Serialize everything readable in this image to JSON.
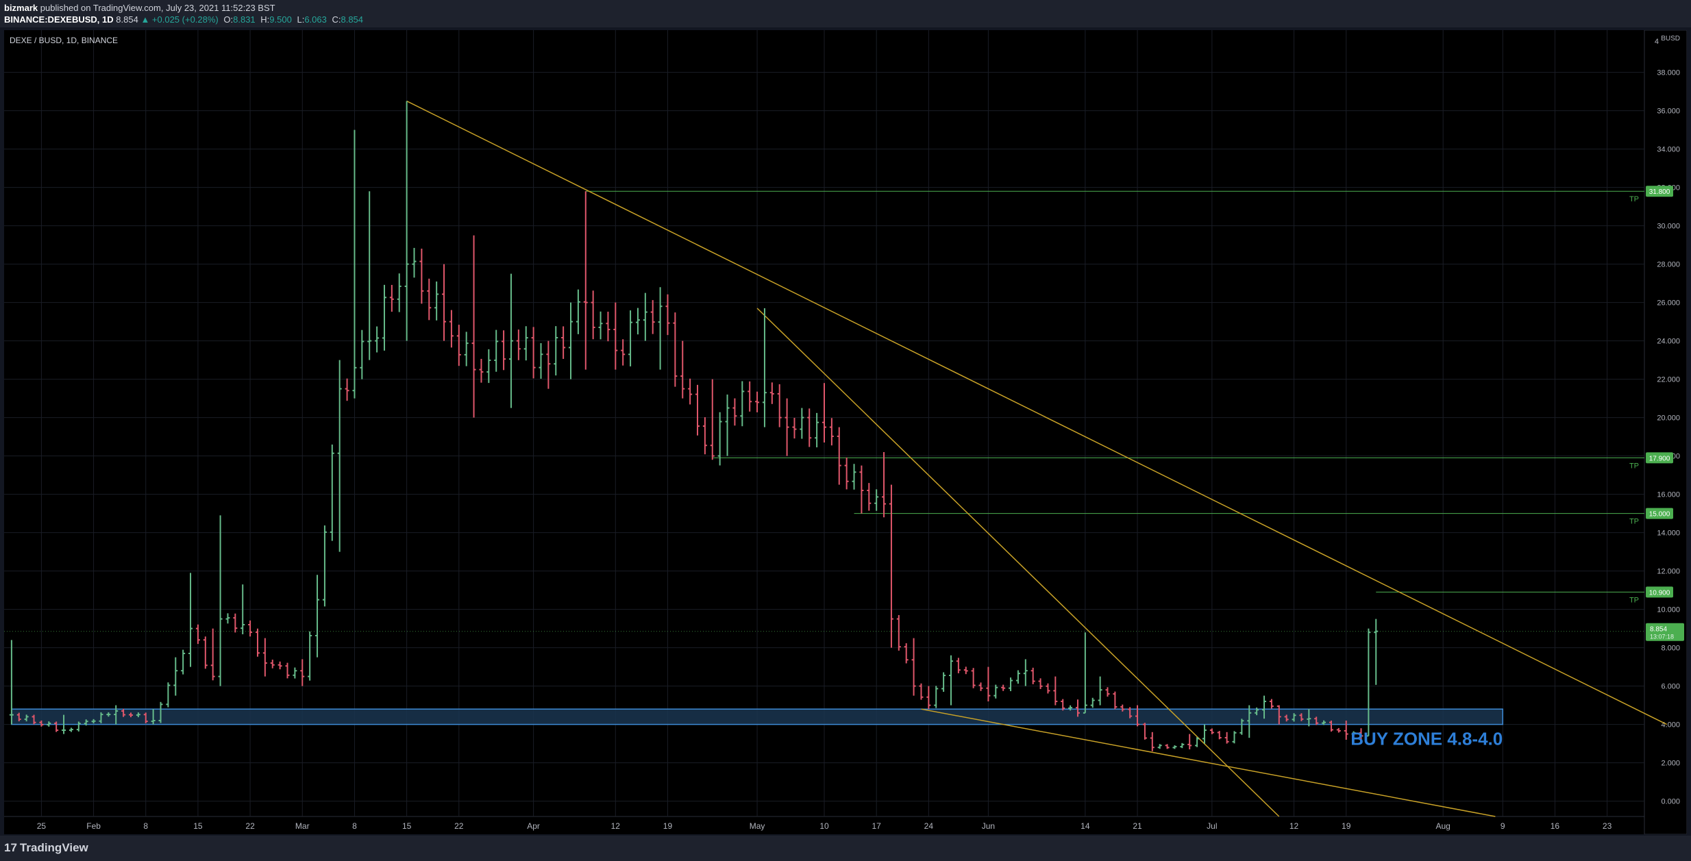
{
  "header": {
    "author": "bizmark",
    "published": "published on TradingView.com, July 23, 2021 11:52:23 BST",
    "symbol": "BINANCE:DEXEBUSD, 1D",
    "price": "8.854",
    "change": "▲ +0.025 (+0.28%)",
    "o_label": "O:",
    "o_value": "8.831",
    "h_label": "H:",
    "h_value": "9.500",
    "l_label": "L:",
    "l_value": "6.063",
    "c_label": "C:",
    "c_value": "8.854"
  },
  "footer": {
    "brand": "TradingView",
    "brand_mark": "17"
  },
  "colors": {
    "background": "#000000",
    "up": "#66bb8a",
    "down": "#e0576b",
    "grid": "#1a1d26",
    "trendline": "#c9a227",
    "target_line": "#4caf50",
    "buy_zone_fill": "#1a3550",
    "buy_zone_border": "#3d8bd6",
    "buy_zone_text": "#2e7fd8"
  },
  "chart_data": {
    "type": "ohlc",
    "title": "DEXE / BUSD, 1D, BINANCE",
    "currency_label": "BUSD",
    "ylim": [
      -0.8,
      40.2
    ],
    "y_ticks": [
      0,
      2,
      4,
      6,
      8,
      10,
      12,
      14,
      16,
      18,
      20,
      22,
      24,
      26,
      28,
      30,
      32,
      34,
      36,
      38
    ],
    "y_tick_labels": [
      "0.000",
      "2.000",
      "4.000",
      "6.000",
      "8.000",
      "10.000",
      "12.000",
      "14.000",
      "16.000",
      "18.000",
      "20.000",
      "22.000",
      "24.000",
      "26.000",
      "28.000",
      "30.000",
      "32.000",
      "34.000",
      "36.000",
      "38.000"
    ],
    "y_top_label": "4",
    "xlim": [
      "2021-01-20",
      "2021-08-28"
    ],
    "x_ticks": [
      {
        "date": "2021-01-25",
        "label": "25"
      },
      {
        "date": "2021-02-01",
        "label": "Feb"
      },
      {
        "date": "2021-02-08",
        "label": "8"
      },
      {
        "date": "2021-02-15",
        "label": "15"
      },
      {
        "date": "2021-02-22",
        "label": "22"
      },
      {
        "date": "2021-03-01",
        "label": "Mar"
      },
      {
        "date": "2021-03-08",
        "label": "8"
      },
      {
        "date": "2021-03-15",
        "label": "15"
      },
      {
        "date": "2021-03-22",
        "label": "22"
      },
      {
        "date": "2021-04-01",
        "label": "Apr"
      },
      {
        "date": "2021-04-12",
        "label": "12"
      },
      {
        "date": "2021-04-19",
        "label": "19"
      },
      {
        "date": "2021-05-01",
        "label": "May"
      },
      {
        "date": "2021-05-10",
        "label": "10"
      },
      {
        "date": "2021-05-17",
        "label": "17"
      },
      {
        "date": "2021-05-24",
        "label": "24"
      },
      {
        "date": "2021-06-01",
        "label": "Jun"
      },
      {
        "date": "2021-06-14",
        "label": "14"
      },
      {
        "date": "2021-06-21",
        "label": "21"
      },
      {
        "date": "2021-07-01",
        "label": "Jul"
      },
      {
        "date": "2021-07-12",
        "label": "12"
      },
      {
        "date": "2021-07-19",
        "label": "19"
      },
      {
        "date": "2021-08-01",
        "label": "Aug"
      },
      {
        "date": "2021-08-09",
        "label": "9"
      },
      {
        "date": "2021-08-16",
        "label": "16"
      },
      {
        "date": "2021-08-23",
        "label": "23"
      }
    ],
    "anchors": [
      {
        "date": "2021-01-21",
        "close": 4.5,
        "high": 8.4,
        "low": 4.0
      },
      {
        "date": "2021-01-28",
        "close": 3.7,
        "high": 4.5,
        "low": 3.5
      },
      {
        "date": "2021-02-04",
        "close": 4.7,
        "high": 5.0,
        "low": 4.0
      },
      {
        "date": "2021-02-09",
        "close": 4.2,
        "high": 4.8,
        "low": 4.0
      },
      {
        "date": "2021-02-12",
        "close": 6.8,
        "high": 7.5,
        "low": 5.5
      },
      {
        "date": "2021-02-14",
        "close": 9.0,
        "high": 11.9,
        "low": 7.0
      },
      {
        "date": "2021-02-17",
        "close": 6.5,
        "high": 9.0,
        "low": 6.3
      },
      {
        "date": "2021-02-18",
        "close": 9.5,
        "high": 14.9,
        "low": 6.0
      },
      {
        "date": "2021-02-21",
        "close": 9.2,
        "high": 11.3,
        "low": 8.7
      },
      {
        "date": "2021-02-24",
        "close": 7.2,
        "high": 8.5,
        "low": 6.5
      },
      {
        "date": "2021-03-01",
        "close": 6.5,
        "high": 7.4,
        "low": 6.0
      },
      {
        "date": "2021-03-03",
        "close": 10.5,
        "high": 11.8,
        "low": 7.5
      },
      {
        "date": "2021-03-06",
        "close": 21.5,
        "high": 23.0,
        "low": 13.0
      },
      {
        "date": "2021-03-08",
        "close": 22.6,
        "high": 35.0,
        "low": 21.0
      },
      {
        "date": "2021-03-10",
        "close": 24.0,
        "high": 31.8,
        "low": 23.0
      },
      {
        "date": "2021-03-15",
        "close": 28.0,
        "high": 36.5,
        "low": 24.0
      },
      {
        "date": "2021-03-20",
        "close": 25.0,
        "high": 28.0,
        "low": 24.0
      },
      {
        "date": "2021-03-24",
        "close": 22.5,
        "high": 29.5,
        "low": 20.0
      },
      {
        "date": "2021-03-29",
        "close": 24.0,
        "high": 27.5,
        "low": 20.5
      },
      {
        "date": "2021-04-03",
        "close": 22.8,
        "high": 24.0,
        "low": 21.5
      },
      {
        "date": "2021-04-06",
        "close": 25.0,
        "high": 26.0,
        "low": 22.0
      },
      {
        "date": "2021-04-08",
        "close": 26.0,
        "high": 31.8,
        "low": 22.5
      },
      {
        "date": "2021-04-12",
        "close": 23.5,
        "high": 26.0,
        "low": 22.5
      },
      {
        "date": "2021-04-16",
        "close": 25.5,
        "high": 26.5,
        "low": 24.0
      },
      {
        "date": "2021-04-18",
        "close": 25.8,
        "high": 26.8,
        "low": 22.5
      },
      {
        "date": "2021-04-21",
        "close": 21.5,
        "high": 24.0,
        "low": 21.0
      },
      {
        "date": "2021-04-25",
        "close": 18.0,
        "high": 22.0,
        "low": 17.8
      },
      {
        "date": "2021-04-27",
        "close": 20.5,
        "high": 21.2,
        "low": 18.0
      },
      {
        "date": "2021-05-02",
        "close": 21.3,
        "high": 25.7,
        "low": 19.5
      },
      {
        "date": "2021-05-05",
        "close": 19.5,
        "high": 21.0,
        "low": 18.0
      },
      {
        "date": "2021-05-10",
        "close": 19.5,
        "high": 21.8,
        "low": 18.7
      },
      {
        "date": "2021-05-12",
        "close": 17.5,
        "high": 19.5,
        "low": 16.5
      },
      {
        "date": "2021-05-15",
        "close": 16.2,
        "high": 17.5,
        "low": 15.0
      },
      {
        "date": "2021-05-18",
        "close": 15.5,
        "high": 18.2,
        "low": 14.8
      },
      {
        "date": "2021-05-19",
        "close": 9.5,
        "high": 16.5,
        "low": 8.0
      },
      {
        "date": "2021-05-22",
        "close": 6.0,
        "high": 8.5,
        "low": 5.5
      },
      {
        "date": "2021-05-24",
        "close": 5.0,
        "high": 6.0,
        "low": 4.8
      },
      {
        "date": "2021-05-27",
        "close": 7.3,
        "high": 7.6,
        "low": 5.0
      },
      {
        "date": "2021-06-01",
        "close": 5.5,
        "high": 7.0,
        "low": 5.2
      },
      {
        "date": "2021-06-06",
        "close": 6.8,
        "high": 7.4,
        "low": 6.0
      },
      {
        "date": "2021-06-10",
        "close": 5.2,
        "high": 6.5,
        "low": 5.0
      },
      {
        "date": "2021-06-13",
        "close": 4.6,
        "high": 5.3,
        "low": 4.4
      },
      {
        "date": "2021-06-14",
        "close": 5.0,
        "high": 8.8,
        "low": 4.6
      },
      {
        "date": "2021-06-16",
        "close": 5.8,
        "high": 6.5,
        "low": 5.0
      },
      {
        "date": "2021-06-21",
        "close": 4.0,
        "high": 5.0,
        "low": 3.9
      },
      {
        "date": "2021-06-23",
        "close": 2.8,
        "high": 3.6,
        "low": 2.6
      },
      {
        "date": "2021-06-28",
        "close": 2.9,
        "high": 3.5,
        "low": 2.7
      },
      {
        "date": "2021-06-30",
        "close": 3.7,
        "high": 4.0,
        "low": 3.0
      },
      {
        "date": "2021-07-03",
        "close": 3.1,
        "high": 3.6,
        "low": 3.0
      },
      {
        "date": "2021-07-06",
        "close": 4.6,
        "high": 5.0,
        "low": 3.3
      },
      {
        "date": "2021-07-08",
        "close": 5.2,
        "high": 5.5,
        "low": 4.3
      },
      {
        "date": "2021-07-10",
        "close": 4.4,
        "high": 5.0,
        "low": 4.0
      },
      {
        "date": "2021-07-14",
        "close": 4.3,
        "high": 4.8,
        "low": 3.9
      },
      {
        "date": "2021-07-19",
        "close": 3.5,
        "high": 4.2,
        "low": 3.2
      },
      {
        "date": "2021-07-21",
        "close": 3.4,
        "high": 3.8,
        "low": 3.1
      },
      {
        "date": "2021-07-22",
        "close": 8.8,
        "high": 9.0,
        "low": 3.4
      },
      {
        "date": "2021-07-23",
        "close": 8.854,
        "high": 9.5,
        "low": 6.063
      }
    ],
    "horizontal_levels": [
      {
        "value": 31.8,
        "label": "31.800",
        "tag": "TP",
        "from": "2021-04-08"
      },
      {
        "value": 17.9,
        "label": "17.900",
        "tag": "TP",
        "from": "2021-04-25"
      },
      {
        "value": 15.0,
        "label": "15.000",
        "tag": "TP",
        "from": "2021-05-14"
      },
      {
        "value": 10.9,
        "label": "10.900",
        "tag": "TP",
        "from": "2021-07-23"
      }
    ],
    "trendlines": [
      {
        "from": {
          "date": "2021-03-15",
          "value": 36.5
        },
        "to": {
          "date": "2021-08-31",
          "value": 4.0
        }
      },
      {
        "from": {
          "date": "2021-05-01",
          "value": 25.7
        },
        "to": {
          "date": "2021-07-10",
          "value": -0.8
        }
      },
      {
        "from": {
          "date": "2021-05-23",
          "value": 4.8
        },
        "to": {
          "date": "2021-08-08",
          "value": -0.8
        }
      }
    ],
    "buy_zone": {
      "from": "2021-01-21",
      "to": "2021-08-09",
      "low": 4.0,
      "high": 4.8,
      "label": "BUY ZONE 4.8-4.0"
    },
    "last_price": {
      "value": 8.854,
      "label": "8.854",
      "countdown": "13:07:18"
    }
  }
}
